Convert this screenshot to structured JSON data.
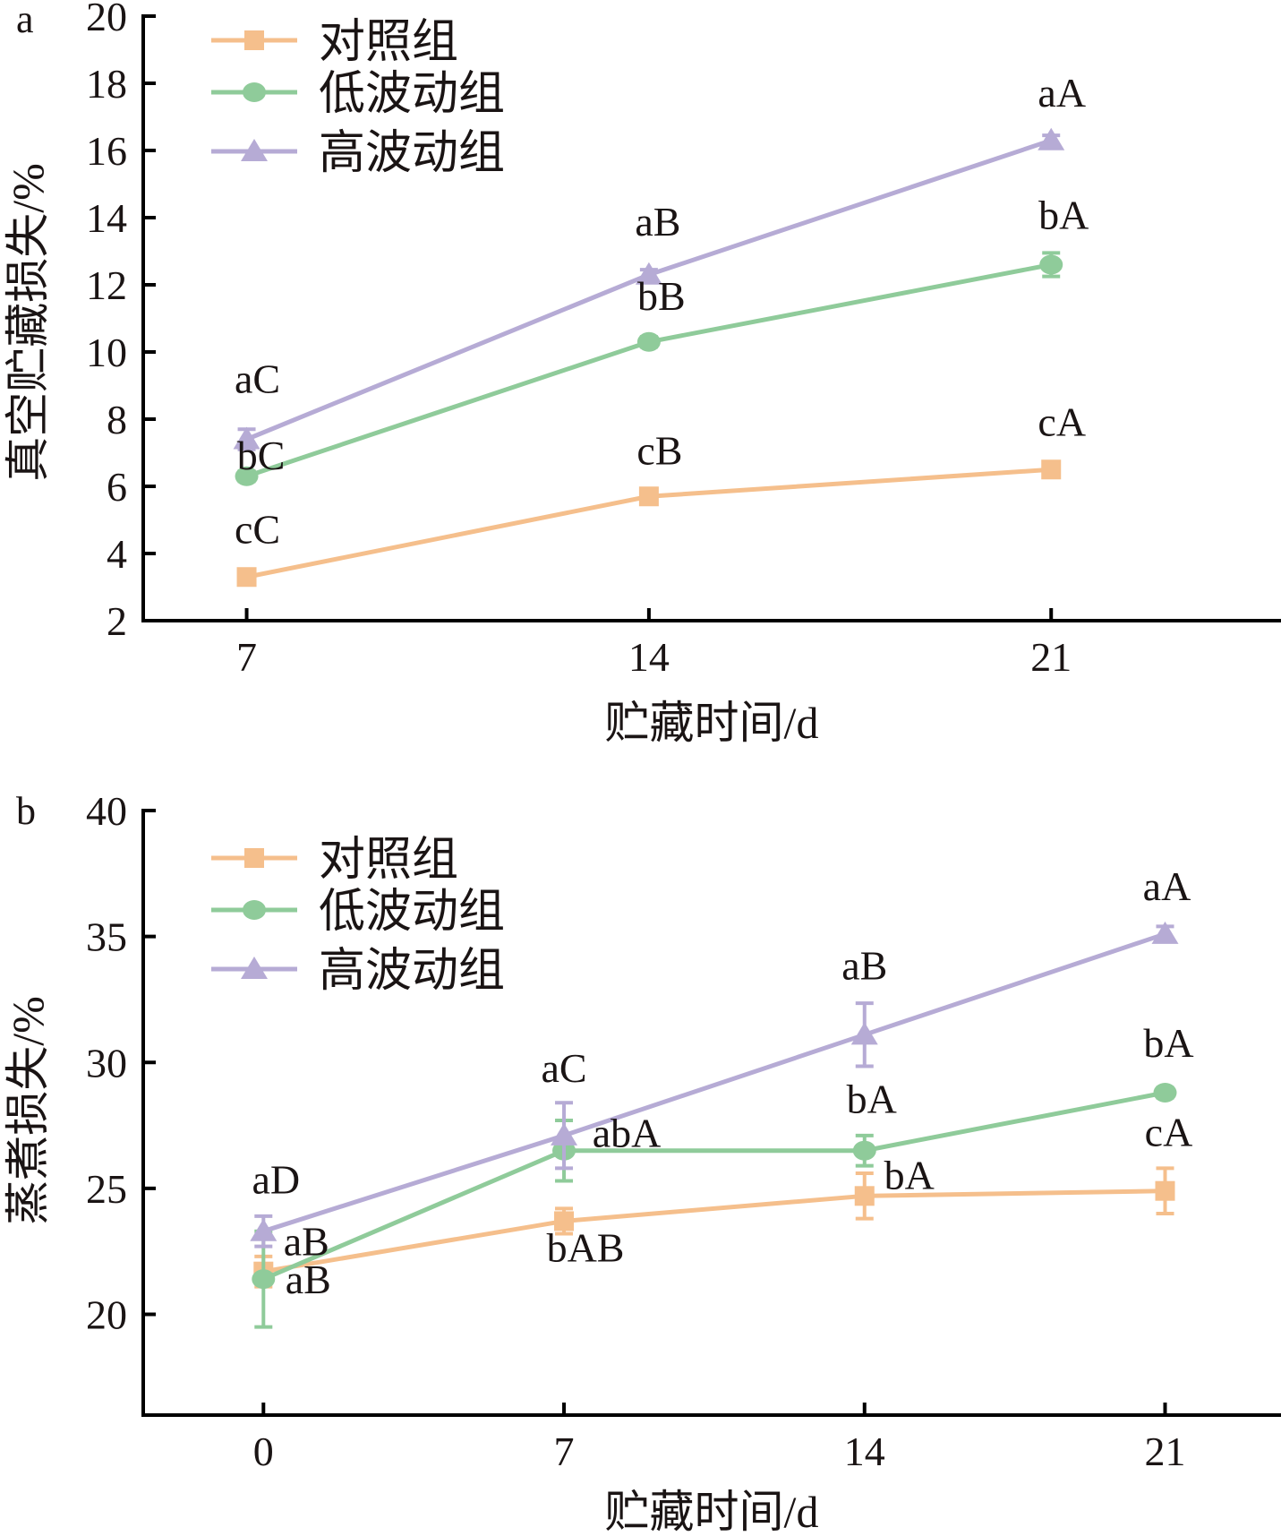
{
  "chart_data": [
    {
      "type": "line",
      "panel_letter": "a",
      "xlabel": "贮藏时间/d",
      "ylabel": "真空贮藏损失/%",
      "x": [
        7,
        14,
        21
      ],
      "x_tick_labels": [
        "7",
        "14",
        "21"
      ],
      "ylim": [
        2,
        20
      ],
      "xlim": [
        5.2,
        25
      ],
      "y_ticks": [
        2,
        4,
        6,
        8,
        10,
        12,
        14,
        16,
        18,
        20
      ],
      "y_tick_labels": [
        "2",
        "4",
        "6",
        "8",
        "10",
        "12",
        "14",
        "16",
        "18",
        "20"
      ],
      "grid": false,
      "legend_position": "top-left",
      "series": [
        {
          "name": "对照组",
          "marker": "square",
          "color": "#F5BF8C",
          "values": [
            3.3,
            5.7,
            6.5
          ],
          "errors": [
            0.15,
            0.15,
            0.15
          ],
          "labels": [
            "cC",
            "cB",
            "cA"
          ]
        },
        {
          "name": "低波动组",
          "marker": "circle",
          "color": "#8FCB9A",
          "values": [
            6.3,
            10.3,
            12.6
          ],
          "errors": [
            0.15,
            0.15,
            0.35
          ],
          "labels": [
            "bC",
            "bB",
            "bA"
          ]
        },
        {
          "name": "高波动组",
          "marker": "triangle",
          "color": "#B6ABD5",
          "values": [
            7.4,
            12.3,
            16.3
          ],
          "errors": [
            0.3,
            0.15,
            0.15
          ],
          "labels": [
            "aC",
            "aB",
            "aA"
          ]
        }
      ]
    },
    {
      "type": "line",
      "panel_letter": "b",
      "xlabel": "贮藏时间/d",
      "ylabel": "蒸煮损失/%",
      "x": [
        0,
        7,
        14,
        21
      ],
      "x_tick_labels": [
        "0",
        "7",
        "14",
        "21"
      ],
      "ylim": [
        16,
        40
      ],
      "xlim": [
        -2.8,
        23.7
      ],
      "y_ticks": [
        20,
        25,
        30,
        35,
        40
      ],
      "y_tick_labels": [
        "20",
        "25",
        "30",
        "35",
        "40"
      ],
      "grid": false,
      "legend_position": "top-left",
      "series": [
        {
          "name": "对照组",
          "marker": "square",
          "color": "#F5BF8C",
          "values": [
            21.7,
            23.7,
            24.7,
            24.9
          ],
          "errors": [
            0.6,
            0.5,
            0.9,
            0.9
          ],
          "labels": [
            "aB",
            "bAB",
            "bA",
            "cA"
          ]
        },
        {
          "name": "低波动组",
          "marker": "circle",
          "color": "#8FCB9A",
          "values": [
            21.4,
            26.5,
            26.5,
            28.8
          ],
          "errors": [
            1.9,
            1.2,
            0.6,
            0.2
          ],
          "labels": [
            "aB",
            "abA",
            "bA",
            "bA"
          ]
        },
        {
          "name": "高波动组",
          "marker": "triangle",
          "color": "#B6ABD5",
          "values": [
            23.3,
            27.1,
            31.1,
            35.1
          ],
          "errors": [
            0.6,
            1.3,
            1.25,
            0.3
          ],
          "labels": [
            "aD",
            "aC",
            "aB",
            "aA"
          ]
        }
      ]
    }
  ]
}
